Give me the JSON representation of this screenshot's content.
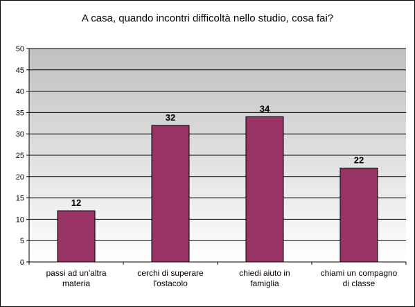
{
  "chart_data": {
    "type": "bar",
    "title": "A casa, quando incontri difficoltà nello studio, cosa fai?",
    "categories": [
      [
        "passi ad un'altra",
        "materia"
      ],
      [
        "cerchi di superare",
        "l'ostacolo"
      ],
      [
        "chiedi aiuto in",
        "famiglia"
      ],
      [
        "chiami un compagno",
        "di classe"
      ]
    ],
    "values": [
      12,
      32,
      34,
      22
    ],
    "ylim": [
      0,
      50
    ],
    "yticks": [
      0,
      5,
      10,
      15,
      20,
      25,
      30,
      35,
      40,
      45,
      50
    ],
    "grid": true,
    "legend": "none",
    "colors": {
      "bar": "#993366",
      "bar_stroke": "#000000",
      "grid": "#000000",
      "plot_bg_top": "#c0c0c0",
      "plot_bg_bottom": "#ffffff"
    }
  }
}
